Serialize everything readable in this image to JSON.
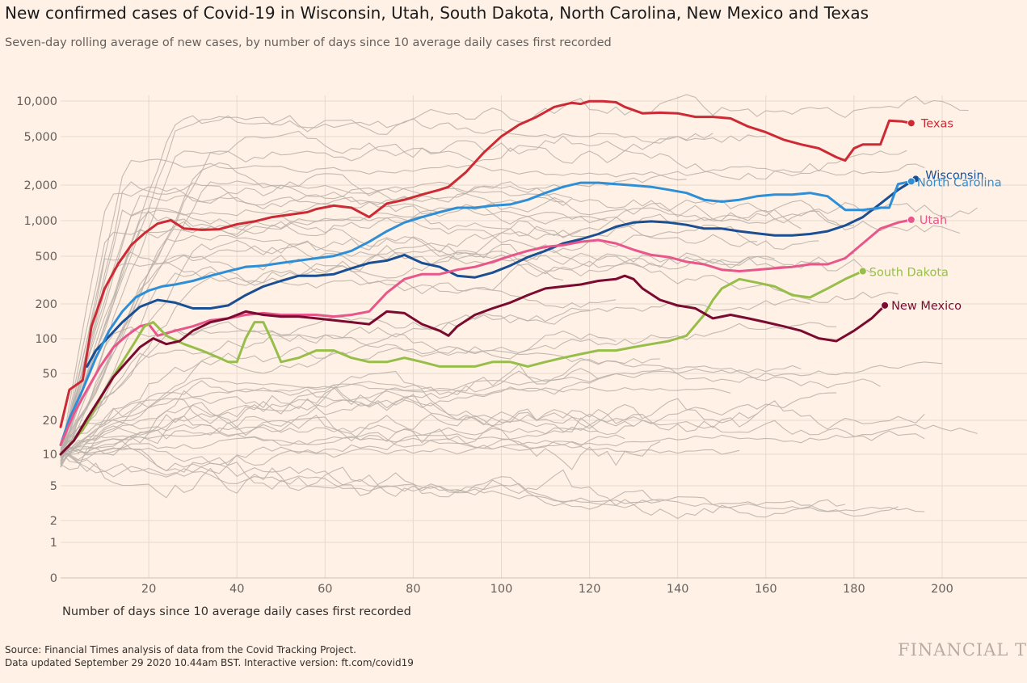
{
  "header": {
    "title": "New confirmed cases of Covid-19 in Wisconsin, Utah, South Dakota, North Carolina, New Mexico and Texas",
    "subtitle": "Seven-day rolling average of new cases, by number of days since 10 average daily cases first recorded"
  },
  "footer": {
    "source_line1": "Source: Financial Times analysis of data from the Covid Tracking Project.",
    "source_line2": "Data updated September 29 2020 10.44am BST. Interactive version: ft.com/covid19",
    "logo": "FINANCIAL T"
  },
  "chart_data": {
    "type": "line",
    "title": "New confirmed cases of Covid-19 in Wisconsin, Utah, South Dakota, North Carolina, New Mexico and Texas",
    "subtitle": "Seven-day rolling average of new cases, by number of days since 10 average daily cases first recorded",
    "xlabel": "Number of days since 10 average daily cases first recorded",
    "ylabel": "",
    "y_scale": "log",
    "x_ticks": [
      20,
      40,
      60,
      80,
      100,
      120,
      140,
      160,
      180,
      200
    ],
    "y_ticks": [
      0,
      1,
      2,
      5,
      10,
      20,
      50,
      100,
      200,
      500,
      1000,
      2000,
      5000,
      10000
    ],
    "y_tick_labels": [
      "0",
      "1",
      "2",
      "5",
      "10",
      "20",
      "50",
      "100",
      "200",
      "500",
      "1,000",
      "2,000",
      "5,000",
      "10,000"
    ],
    "xlim": [
      0,
      212
    ],
    "ylim": [
      0,
      12000
    ],
    "grid": true,
    "legend": "direct labels at line ends",
    "colors": {
      "background": "#fff1e5",
      "grid": "#e6d9ce",
      "context": "#b9b0a9",
      "texas": "#cc2b36",
      "wisconsin": "#1a4f94",
      "north_carolina": "#2f8fd6",
      "utah": "#e8578b",
      "south_dakota": "#97be4a",
      "new_mexico": "#7a0a30"
    },
    "series": [
      {
        "name": "Texas",
        "color": "#cc2b36",
        "x": [
          0,
          2,
          5,
          7,
          10,
          13,
          16,
          19,
          22,
          25,
          28,
          32,
          36,
          40,
          44,
          48,
          52,
          56,
          58,
          62,
          66,
          70,
          74,
          78,
          82,
          86,
          88,
          92,
          96,
          100,
          104,
          108,
          112,
          116,
          118,
          120,
          123,
          126,
          128,
          132,
          136,
          140,
          144,
          148,
          152,
          156,
          160,
          164,
          168,
          172,
          176,
          178,
          180,
          182,
          184,
          186,
          188,
          191,
          193
        ],
        "y": [
          17,
          35,
          42,
          120,
          250,
          400,
          580,
          730,
          880,
          940,
          800,
          780,
          790,
          870,
          920,
          1000,
          1050,
          1100,
          1170,
          1250,
          1200,
          1000,
          1300,
          1400,
          1550,
          1700,
          1800,
          2400,
          3500,
          4800,
          6000,
          7000,
          8500,
          9200,
          9000,
          9500,
          9500,
          9300,
          8500,
          7500,
          7600,
          7500,
          7000,
          7000,
          6800,
          5800,
          5200,
          4500,
          4100,
          3800,
          3200,
          3000,
          3800,
          4100,
          4100,
          4100,
          6500,
          6400,
          6200
        ]
      },
      {
        "name": "Wisconsin",
        "color": "#1a4f94",
        "x": [
          6,
          8,
          10,
          14,
          18,
          22,
          26,
          30,
          34,
          38,
          42,
          46,
          50,
          54,
          58,
          62,
          66,
          70,
          74,
          78,
          82,
          86,
          90,
          94,
          98,
          102,
          106,
          110,
          114,
          118,
          122,
          126,
          130,
          134,
          138,
          142,
          146,
          150,
          154,
          158,
          162,
          166,
          170,
          174,
          178,
          182,
          186,
          190,
          194
        ],
        "y": [
          55,
          75,
          90,
          130,
          175,
          200,
          190,
          170,
          170,
          180,
          220,
          260,
          290,
          320,
          320,
          330,
          370,
          410,
          430,
          480,
          410,
          380,
          320,
          310,
          340,
          390,
          460,
          520,
          600,
          650,
          720,
          830,
          900,
          920,
          900,
          860,
          800,
          800,
          760,
          730,
          700,
          700,
          720,
          760,
          850,
          1000,
          1300,
          1700,
          2100
        ]
      },
      {
        "name": "North Carolina",
        "color": "#2f8fd6",
        "x": [
          0,
          2,
          5,
          8,
          11,
          14,
          17,
          20,
          23,
          26,
          30,
          34,
          38,
          42,
          46,
          50,
          54,
          58,
          62,
          66,
          70,
          74,
          78,
          82,
          86,
          90,
          94,
          98,
          102,
          106,
          110,
          114,
          118,
          122,
          126,
          130,
          134,
          138,
          142,
          146,
          150,
          154,
          158,
          162,
          166,
          170,
          174,
          178,
          182,
          186,
          188,
          190,
          193
        ],
        "y": [
          12,
          20,
          35,
          65,
          110,
          160,
          210,
          240,
          260,
          270,
          290,
          320,
          350,
          380,
          390,
          410,
          430,
          450,
          470,
          520,
          620,
          760,
          900,
          1000,
          1100,
          1200,
          1200,
          1250,
          1280,
          1400,
          1600,
          1800,
          1950,
          1950,
          1900,
          1850,
          1800,
          1700,
          1600,
          1400,
          1350,
          1400,
          1500,
          1550,
          1550,
          1600,
          1500,
          1150,
          1150,
          1200,
          1200,
          1900,
          2000
        ]
      },
      {
        "name": "Utah",
        "color": "#e8578b",
        "x": [
          0,
          3,
          6,
          9,
          12,
          15,
          18,
          20,
          22,
          26,
          30,
          34,
          38,
          42,
          46,
          50,
          54,
          58,
          62,
          66,
          70,
          74,
          78,
          82,
          86,
          90,
          94,
          98,
          102,
          106,
          110,
          114,
          118,
          122,
          126,
          130,
          134,
          138,
          142,
          146,
          150,
          154,
          158,
          162,
          166,
          170,
          174,
          178,
          182,
          186,
          190,
          193
        ],
        "y": [
          12,
          22,
          35,
          55,
          80,
          100,
          120,
          125,
          100,
          110,
          120,
          135,
          140,
          150,
          155,
          150,
          150,
          150,
          145,
          150,
          160,
          230,
          300,
          330,
          330,
          360,
          380,
          420,
          470,
          520,
          560,
          580,
          620,
          640,
          600,
          530,
          480,
          460,
          420,
          400,
          360,
          350,
          360,
          370,
          380,
          400,
          400,
          450,
          600,
          800,
          900,
          950
        ]
      },
      {
        "name": "South Dakota",
        "color": "#97be4a",
        "x": [
          2,
          5,
          8,
          11,
          14,
          17,
          19,
          21,
          24,
          28,
          32,
          36,
          38,
          40,
          42,
          44,
          46,
          48,
          50,
          54,
          58,
          62,
          66,
          70,
          74,
          78,
          82,
          86,
          90,
          94,
          98,
          102,
          106,
          110,
          114,
          118,
          122,
          126,
          130,
          134,
          138,
          142,
          146,
          148,
          150,
          154,
          158,
          162,
          166,
          170,
          174,
          178,
          182
        ],
        "y": [
          12,
          16,
          25,
          40,
          60,
          90,
          120,
          130,
          100,
          85,
          75,
          65,
          60,
          60,
          95,
          130,
          130,
          90,
          60,
          65,
          75,
          75,
          65,
          60,
          60,
          65,
          60,
          55,
          55,
          55,
          60,
          60,
          55,
          60,
          65,
          70,
          75,
          75,
          80,
          85,
          90,
          100,
          150,
          200,
          250,
          300,
          280,
          260,
          220,
          210,
          250,
          300,
          350
        ]
      },
      {
        "name": "New Mexico",
        "color": "#7a0a30",
        "x": [
          0,
          3,
          6,
          9,
          12,
          15,
          18,
          21,
          24,
          27,
          30,
          34,
          38,
          42,
          46,
          50,
          54,
          58,
          62,
          66,
          70,
          74,
          78,
          82,
          86,
          88,
          90,
          94,
          98,
          102,
          106,
          110,
          114,
          118,
          122,
          126,
          128,
          130,
          132,
          136,
          140,
          144,
          148,
          152,
          156,
          160,
          164,
          168,
          172,
          176,
          180,
          184,
          187
        ],
        "y": [
          10,
          13,
          20,
          30,
          45,
          60,
          80,
          95,
          85,
          90,
          110,
          130,
          140,
          160,
          150,
          145,
          145,
          140,
          135,
          130,
          125,
          160,
          155,
          125,
          110,
          100,
          120,
          150,
          170,
          190,
          220,
          250,
          260,
          270,
          290,
          300,
          320,
          300,
          250,
          200,
          180,
          170,
          140,
          150,
          140,
          130,
          120,
          110,
          95,
          90,
          110,
          140,
          180
        ]
      }
    ],
    "labels": {
      "texas": "Texas",
      "wisconsin": "Wisconsin",
      "north_carolina": "North Carolina",
      "utah": "Utah",
      "south_dakota": "South Dakota",
      "new_mexico": "New Mexico"
    }
  }
}
